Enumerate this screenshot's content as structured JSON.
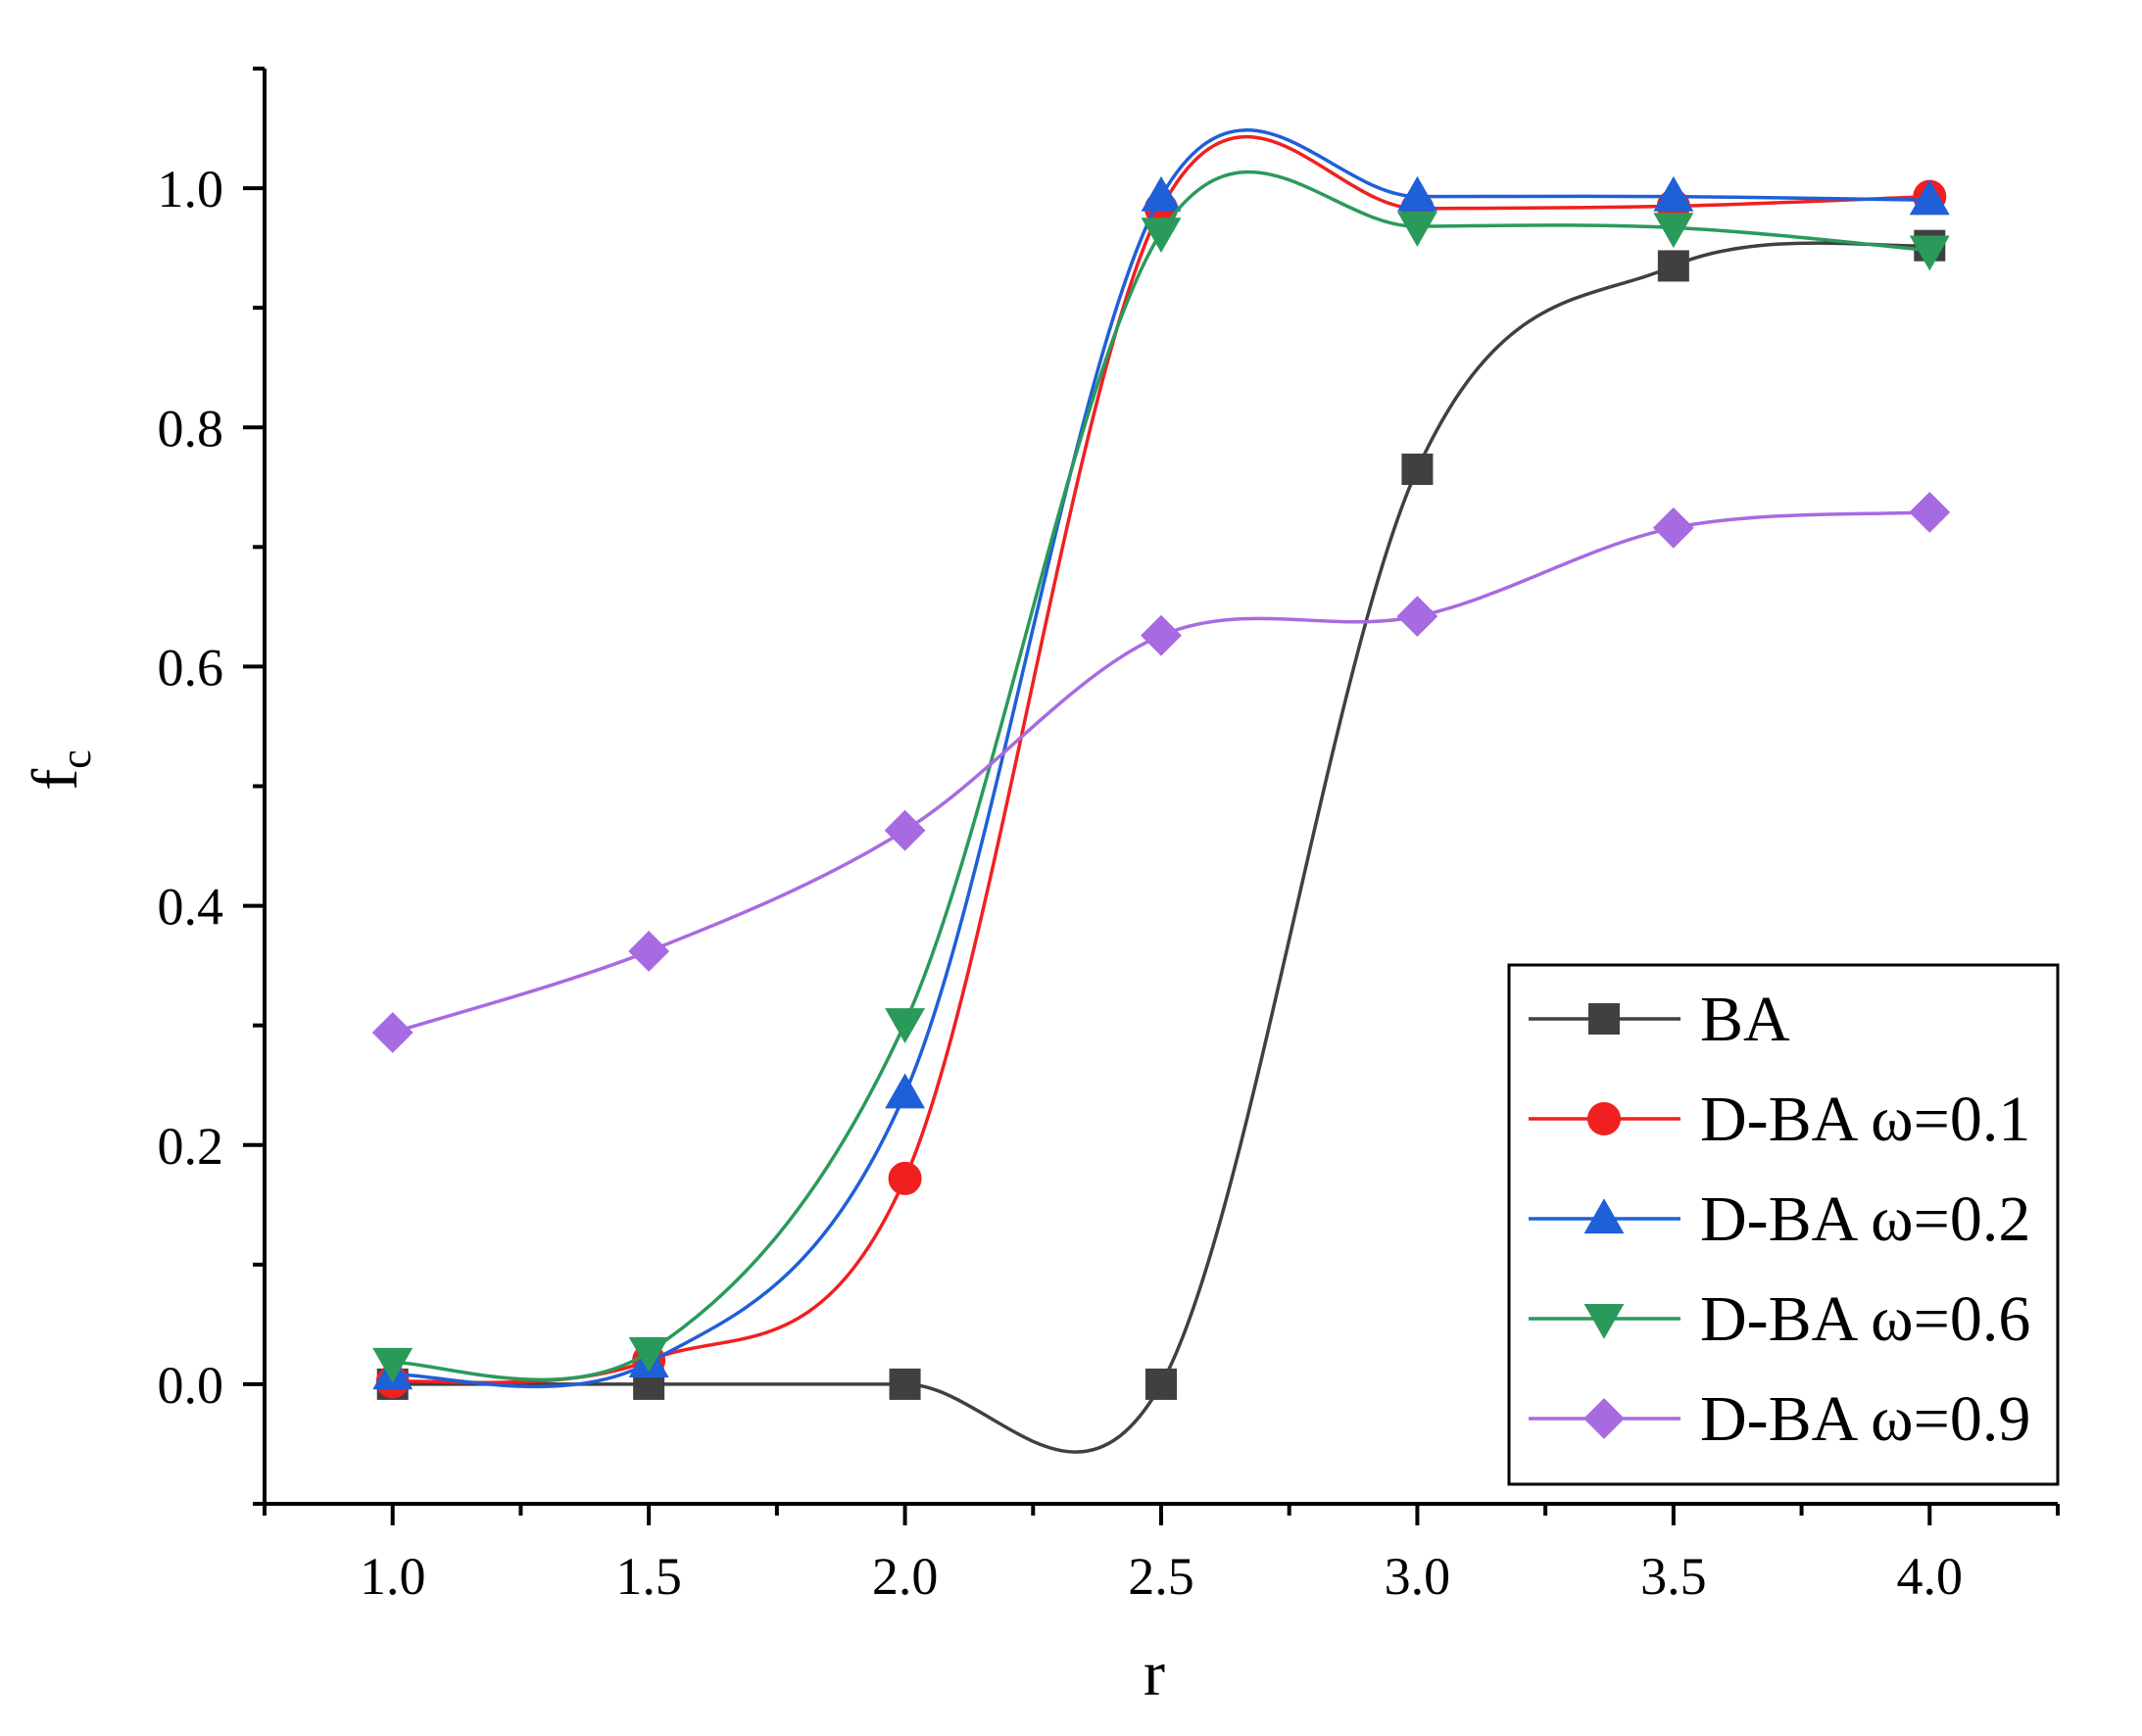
{
  "chart_data": {
    "type": "line",
    "title": "",
    "xlabel": "r",
    "ylabel": "f",
    "ylabel_subscript": "c",
    "xlim": [
      0.75,
      4.25
    ],
    "ylim": [
      -0.1,
      1.1
    ],
    "x_ticks": [
      1.0,
      1.5,
      2.0,
      2.5,
      3.0,
      3.5,
      4.0
    ],
    "x_tick_labels": [
      "1.0",
      "1.5",
      "2.0",
      "2.5",
      "3.0",
      "3.5",
      "4.0"
    ],
    "x_minor_ticks": [
      0.75,
      1.25,
      1.75,
      2.25,
      2.75,
      3.25,
      3.75,
      4.25
    ],
    "y_ticks": [
      0.0,
      0.2,
      0.4,
      0.6,
      0.8,
      1.0
    ],
    "y_tick_labels": [
      "0.0",
      "0.2",
      "0.4",
      "0.6",
      "0.8",
      "1.0"
    ],
    "y_minor_ticks": [
      -0.1,
      0.1,
      0.3,
      0.5,
      0.7,
      0.9,
      1.1
    ],
    "grid": false,
    "legend_position": "bottom-right",
    "x": [
      1.0,
      1.5,
      2.0,
      2.5,
      3.0,
      3.5,
      4.0
    ],
    "series": [
      {
        "name": "BA",
        "marker": "square",
        "color": "#404040",
        "values": [
          0.0,
          0.0,
          0.0,
          0.0,
          0.765,
          0.935,
          0.952
        ]
      },
      {
        "name": "D-BA ω=0.1",
        "marker": "circle",
        "color": "#f02020",
        "values": [
          0.002,
          0.02,
          0.172,
          0.983,
          0.983,
          0.985,
          0.993
        ]
      },
      {
        "name": "D-BA ω=0.2",
        "marker": "triangle-up",
        "color": "#1f5fd8",
        "values": [
          0.008,
          0.018,
          0.243,
          0.993,
          0.993,
          0.993,
          0.99
        ]
      },
      {
        "name": "D-BA ω=0.6",
        "marker": "triangle-down",
        "color": "#2a9a5a",
        "values": [
          0.018,
          0.027,
          0.302,
          0.963,
          0.968,
          0.967,
          0.948
        ]
      },
      {
        "name": "D-BA ω=0.9",
        "marker": "diamond",
        "color": "#a86ae0",
        "values": [
          0.294,
          0.362,
          0.463,
          0.626,
          0.642,
          0.716,
          0.729
        ]
      }
    ]
  }
}
